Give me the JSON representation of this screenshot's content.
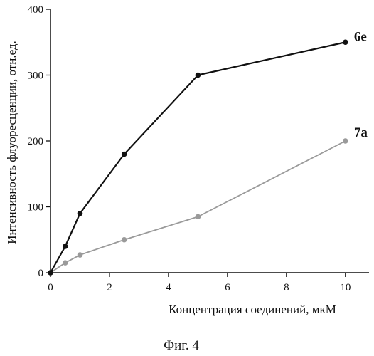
{
  "chart_data": {
    "type": "line",
    "xlabel": "Концентрация соединений, мкМ",
    "ylabel": "Интенсивность флуоресценции, отн.ед.",
    "xlim": [
      0,
      10.8
    ],
    "ylim": [
      0,
      400
    ],
    "x_ticks": [
      0,
      2,
      4,
      6,
      8,
      10
    ],
    "y_ticks": [
      0,
      100,
      200,
      300,
      400
    ],
    "grid": false,
    "series": [
      {
        "name": "6e",
        "color": "#111111",
        "x": [
          0,
          0.5,
          1,
          2.5,
          5,
          10
        ],
        "y": [
          0,
          40,
          90,
          180,
          300,
          350
        ]
      },
      {
        "name": "7a",
        "color": "#9a9a9a",
        "x": [
          0,
          0.5,
          1,
          2.5,
          5,
          10
        ],
        "y": [
          0,
          15,
          27,
          50,
          85,
          200
        ]
      }
    ]
  },
  "caption": "Фиг. 4"
}
